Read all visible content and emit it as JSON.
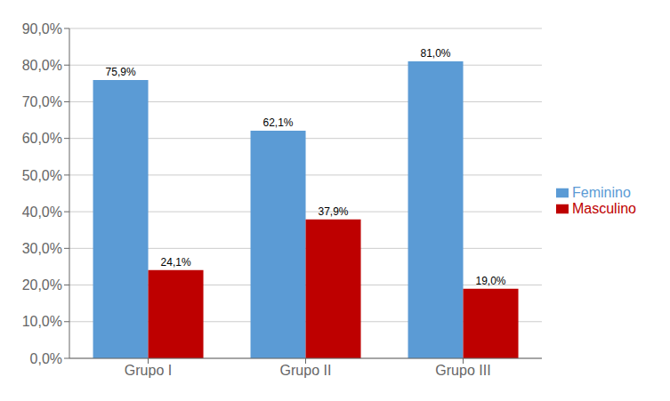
{
  "chart_data": {
    "type": "bar",
    "categories": [
      "Grupo I",
      "Grupo II",
      "Grupo III"
    ],
    "series": [
      {
        "name": "Feminino",
        "color": "#5B9BD5",
        "values": [
          75.9,
          62.1,
          81.0
        ],
        "value_labels": [
          "75,9%",
          "62,1%",
          "81,0%"
        ]
      },
      {
        "name": "Masculino",
        "color": "#BE0000",
        "values": [
          24.1,
          37.9,
          19.0
        ],
        "value_labels": [
          "24,1%",
          "37,9%",
          "19,0%"
        ]
      }
    ],
    "ylim": [
      0,
      90
    ],
    "yticks": [
      {
        "value": 0,
        "label": "0,0%"
      },
      {
        "value": 10,
        "label": "10,0%"
      },
      {
        "value": 20,
        "label": "20,0%"
      },
      {
        "value": 30,
        "label": "30,0%"
      },
      {
        "value": 40,
        "label": "40,0%"
      },
      {
        "value": 50,
        "label": "50,0%"
      },
      {
        "value": 60,
        "label": "60,0%"
      },
      {
        "value": 70,
        "label": "70,0%"
      },
      {
        "value": 80,
        "label": "80,0%"
      },
      {
        "value": 90,
        "label": "90,0%"
      }
    ],
    "grid": true,
    "legend": "right",
    "data_labels": true
  }
}
